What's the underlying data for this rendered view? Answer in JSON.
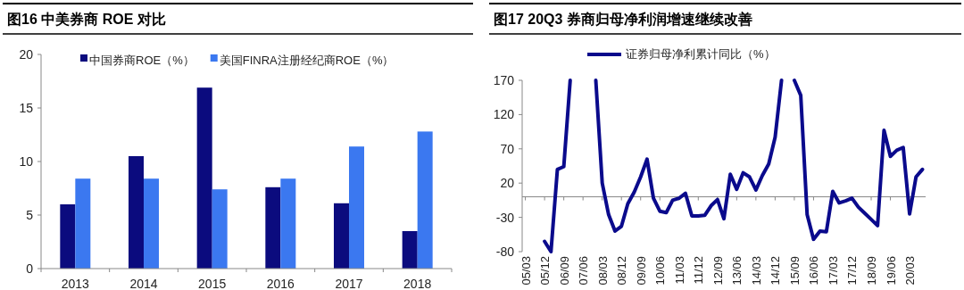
{
  "chart_data": [
    {
      "type": "bar",
      "title": "图16 中美券商 ROE 对比",
      "categories": [
        "2013",
        "2014",
        "2015",
        "2016",
        "2017",
        "2018"
      ],
      "series": [
        {
          "name": "中国券商ROE（%）",
          "color": "#0b0b7e",
          "values": [
            6.0,
            10.5,
            16.9,
            7.6,
            6.1,
            3.5
          ]
        },
        {
          "name": "美国FINRA注册经纪商ROE（%）",
          "color": "#3b78f0",
          "values": [
            8.4,
            8.4,
            7.4,
            8.4,
            11.4,
            12.8
          ]
        }
      ],
      "ylim": [
        0,
        20
      ],
      "yticks": [
        0,
        5,
        10,
        15,
        20
      ],
      "legend": "top"
    },
    {
      "type": "line",
      "title": "图17 20Q3 券商归母净利润增速继续改善",
      "categories": [
        "05/03",
        null,
        null,
        "05/12",
        null,
        null,
        "06/09",
        null,
        null,
        "07/06",
        null,
        null,
        "08/03",
        null,
        null,
        "08/12",
        null,
        null,
        "09/09",
        null,
        null,
        "10/06",
        null,
        null,
        "11/03",
        null,
        null,
        "11/12",
        null,
        null,
        "12/09",
        null,
        null,
        "13/06",
        null,
        null,
        "14/03",
        null,
        null,
        "14/12",
        null,
        null,
        "15/09",
        null,
        null,
        "16/06",
        null,
        null,
        "17/03",
        null,
        null,
        "17/12",
        null,
        null,
        "18/09",
        null,
        null,
        "19/06",
        null,
        null,
        "20/03",
        null,
        null
      ],
      "series": [
        {
          "name": "证券归母净利累计同比（%）",
          "color": "#0a0a8c",
          "values": [
            null,
            null,
            null,
            -65,
            -80,
            40,
            44,
            170,
            null,
            null,
            null,
            170,
            20,
            -26,
            -50,
            -43,
            -10,
            7,
            29,
            55,
            -2,
            -21,
            -23,
            -5,
            -2,
            5,
            -28,
            -28,
            -27,
            -13,
            -4,
            -32,
            33,
            11,
            35,
            29,
            10,
            31,
            48,
            87,
            170,
            null,
            170,
            148,
            -26,
            -62,
            -50,
            -51,
            8,
            -9,
            -6,
            -2,
            -15,
            -24,
            -33,
            -42,
            97,
            59,
            68,
            72,
            -25,
            29,
            40
          ]
        }
      ],
      "ylim": [
        -80,
        170
      ],
      "yticks": [
        -80,
        -30,
        20,
        70,
        120,
        170
      ],
      "legend": "top",
      "line_style": "solid"
    }
  ]
}
